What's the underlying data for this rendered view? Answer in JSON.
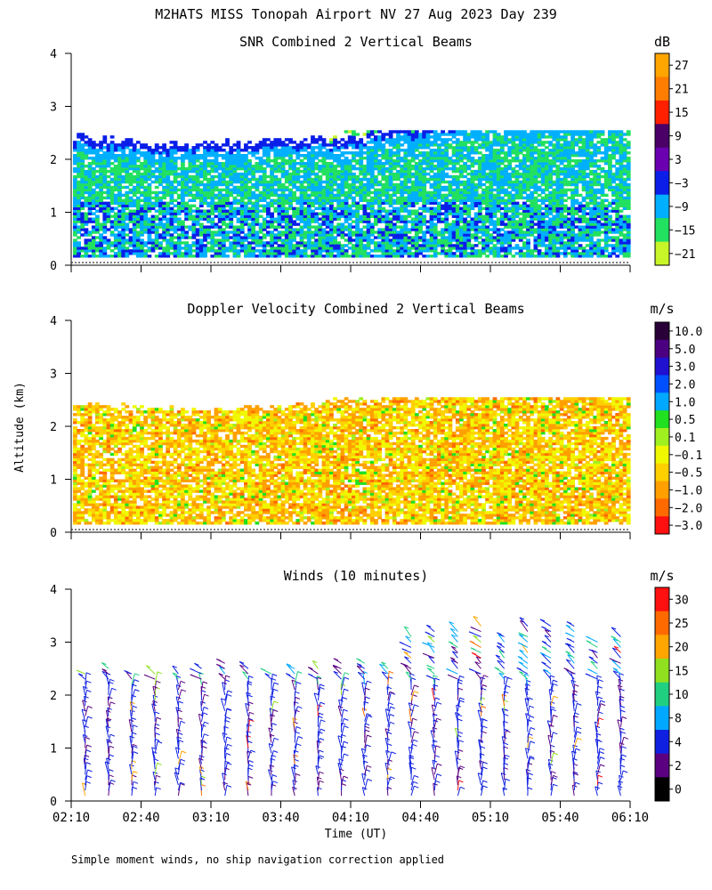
{
  "title": "M2HATS MISS Tonopah Airport NV  27 Aug 2023 Day 239",
  "footnote": "Simple moment winds, no ship navigation correction applied",
  "ylabel": "Altitude (km)",
  "xlabel": "Time (UT)",
  "chart_data": [
    {
      "type": "heatmap",
      "title": "SNR Combined 2 Vertical Beams",
      "unit": "dB",
      "xlim": [
        "02:10",
        "06:10"
      ],
      "xticks": [
        "02:10",
        "02:40",
        "03:10",
        "03:40",
        "04:10",
        "04:40",
        "05:10",
        "05:40",
        "06:10"
      ],
      "ylim": [
        0,
        4
      ],
      "yticks": [
        "0",
        "1",
        "2",
        "3",
        "4"
      ],
      "colorbar": {
        "labels": [
          "27",
          "21",
          "15",
          "9",
          "3",
          "−3",
          "−9",
          "−15",
          "−21"
        ],
        "colors": [
          "#ffa500",
          "#ff7d00",
          "#ff2000",
          "#4a0066",
          "#6a00b0",
          "#0a1ee8",
          "#00b0ff",
          "#22e060",
          "#c8f528"
        ]
      },
      "top_of_echo_km": [
        2.4,
        2.35,
        2.3,
        2.25,
        2.3,
        2.3,
        2.35,
        2.35,
        2.35,
        2.55,
        2.55,
        2.7,
        2.8,
        2.75,
        2.8,
        2.85,
        2.8
      ],
      "base_of_echo_km": 0.15
    },
    {
      "type": "heatmap",
      "title": "Doppler Velocity Combined 2 Vertical Beams",
      "unit": "m/s",
      "xlim": [
        "02:10",
        "06:10"
      ],
      "xticks": [
        "02:10",
        "02:40",
        "03:10",
        "03:40",
        "04:10",
        "04:40",
        "05:10",
        "05:40",
        "06:10"
      ],
      "ylim": [
        0,
        4
      ],
      "yticks": [
        "0",
        "1",
        "2",
        "3",
        "4"
      ],
      "colorbar": {
        "labels": [
          "10.0",
          "5.0",
          "3.0",
          "2.0",
          "1.0",
          "0.5",
          "0.1",
          "−0.1",
          "−0.5",
          "−1.0",
          "−2.0",
          "−3.0"
        ],
        "colors": [
          "#2a0038",
          "#4a0080",
          "#2010d0",
          "#0050ff",
          "#00a8ff",
          "#20e020",
          "#a0f020",
          "#f0f800",
          "#ffd000",
          "#ffa000",
          "#ff6a00",
          "#ff1010"
        ]
      }
    },
    {
      "type": "barbs",
      "title": "Winds (10 minutes)",
      "unit": "m/s",
      "xlim": [
        "02:10",
        "06:10"
      ],
      "xticks": [
        "02:10",
        "02:40",
        "03:10",
        "03:40",
        "04:10",
        "04:40",
        "05:10",
        "05:40",
        "06:10"
      ],
      "ylim": [
        0,
        4
      ],
      "yticks": [
        "0",
        "1",
        "2",
        "3",
        "4"
      ],
      "colorbar": {
        "labels": [
          "30",
          "25",
          "20",
          "15",
          "10",
          "8",
          "4",
          "2",
          "0"
        ],
        "colors": [
          "#ff1010",
          "#ff6a00",
          "#ffa500",
          "#90e020",
          "#20d080",
          "#00a8ff",
          "#1020e0",
          "#5a0080",
          "#000000"
        ]
      },
      "profile_times": [
        "02:16",
        "02:26",
        "02:36",
        "02:46",
        "02:56",
        "03:06",
        "03:16",
        "03:26",
        "03:36",
        "03:46",
        "03:56",
        "04:06",
        "04:16",
        "04:26",
        "04:36",
        "04:46",
        "04:56",
        "05:06",
        "05:16",
        "05:26",
        "05:36",
        "05:46",
        "05:56",
        "06:06"
      ],
      "profile_top_km": [
        2.5,
        2.6,
        2.45,
        2.5,
        2.45,
        2.55,
        2.65,
        2.55,
        2.5,
        2.6,
        2.55,
        2.7,
        2.65,
        2.6,
        3.2,
        3.3,
        3.3,
        3.4,
        3.2,
        3.35,
        3.4,
        3.4,
        3.1,
        3.2
      ]
    }
  ]
}
